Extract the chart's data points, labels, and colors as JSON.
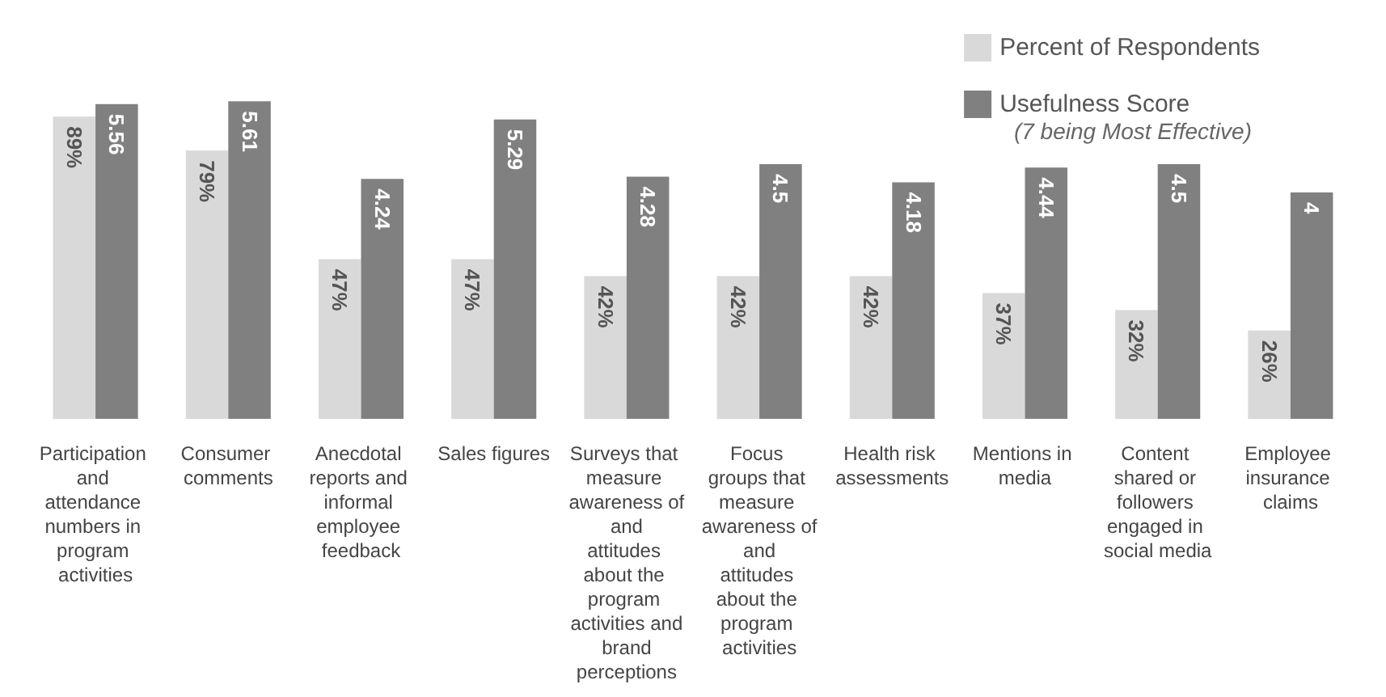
{
  "chart_data": {
    "type": "bar",
    "categories": [
      "Participation and attendance numbers in program activities",
      "Consumer comments",
      "Anecdotal reports and informal employee feedback",
      "Sales figures",
      "Surveys that measure awareness of and attitudes about the program activities and brand perceptions",
      "Focus groups that measure awareness of and attitudes about the program activities",
      "Health risk assessments",
      "Mentions in media",
      "Content shared or followers engaged in social media",
      "Employee insurance claims"
    ],
    "series": [
      {
        "name": "Percent of Respondents",
        "color": "#d9d9d9",
        "values": [
          89,
          79,
          47,
          47,
          42,
          42,
          42,
          37,
          32,
          26
        ],
        "value_labels": [
          "89%",
          "79%",
          "47%",
          "47%",
          "42%",
          "42%",
          "42%",
          "37%",
          "32%",
          "26%"
        ]
      },
      {
        "name": "Usefulness Score",
        "color": "#808080",
        "axis": "y2",
        "values": [
          5.56,
          5.61,
          4.24,
          5.29,
          4.28,
          4.5,
          4.18,
          4.44,
          4.5,
          4
        ],
        "value_labels": [
          "5.56",
          "5.61",
          "4.24",
          "5.29",
          "4.28",
          "4.5",
          "4.18",
          "4.44",
          "4.5",
          "4"
        ]
      }
    ],
    "tick_labels": "x",
    "grid": false,
    "legend": "top right",
    "annotations": [
      "(7 being Most Effective)"
    ]
  }
}
